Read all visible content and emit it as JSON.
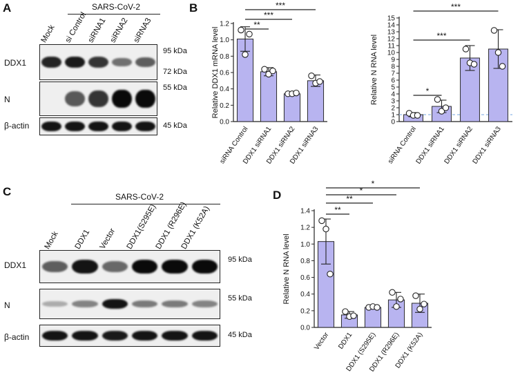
{
  "panel_letters": {
    "a": "A",
    "b": "B",
    "c": "C",
    "d": "D"
  },
  "panelA": {
    "header": "SARS-CoV-2",
    "lanes": [
      "Mock",
      "si Control",
      "siRNA1",
      "siRNA2",
      "siRNA3"
    ],
    "rows": [
      {
        "label": "DDX1",
        "markers": [
          "95 kDa",
          "72 kDa"
        ],
        "bands": [
          0.85,
          0.9,
          0.75,
          0.4,
          0.5
        ]
      },
      {
        "label": "N",
        "markers": [
          "55 kDa"
        ],
        "bands": [
          0.0,
          0.55,
          0.75,
          1.0,
          1.0
        ]
      },
      {
        "label": "β-actin",
        "markers": [
          "45 kDa"
        ],
        "bands": [
          0.95,
          0.95,
          0.95,
          0.95,
          0.95
        ]
      }
    ]
  },
  "panelC": {
    "header": "SARS-CoV-2",
    "lanes": [
      "Mock",
      "DDX1",
      "Vector",
      "DDX1(S295E)",
      "DDX1 (R296E)",
      "DDX1 (K52A)"
    ],
    "rows": [
      {
        "label": "DDX1",
        "markers": [
          "95 kDa"
        ],
        "bands": [
          0.5,
          0.95,
          0.45,
          1.0,
          1.0,
          1.0
        ]
      },
      {
        "label": "N",
        "markers": [
          "55 kDa"
        ],
        "bands": [
          0.05,
          0.3,
          0.95,
          0.35,
          0.35,
          0.3
        ]
      },
      {
        "label": "β-actin",
        "markers": [
          "45 kDa"
        ],
        "bands": [
          0.95,
          0.95,
          0.9,
          0.95,
          0.95,
          0.95
        ]
      }
    ]
  },
  "colors": {
    "bar_fill": "#b8b4f0",
    "bar_stroke": "#2a2a2a",
    "dashed_line": "#8fb8e6"
  },
  "chart_data": [
    {
      "panel": "B-left",
      "type": "bar",
      "ylabel": "Relative DDX1 mRNA level",
      "ylim": [
        0,
        1.2
      ],
      "yticks": [
        "0.0",
        "0.2",
        "0.4",
        "0.6",
        "0.8",
        "1.0",
        "1.2"
      ],
      "categories": [
        "siRNA Control",
        "DDX1 siRNA1",
        "DDX1 siRNA2",
        "DDX1 siRNA3"
      ],
      "values": [
        1.01,
        0.61,
        0.34,
        0.5
      ],
      "errors": [
        0.15,
        0.05,
        0.02,
        0.07
      ],
      "points": [
        [
          1.12,
          0.82,
          1.07
        ],
        [
          0.64,
          0.58,
          0.62
        ],
        [
          0.34,
          0.34,
          0.35
        ],
        [
          0.56,
          0.47,
          0.49
        ]
      ],
      "significance": [
        {
          "from": 0,
          "to": 1,
          "label": "**"
        },
        {
          "from": 0,
          "to": 2,
          "label": "***"
        },
        {
          "from": 0,
          "to": 3,
          "label": "***"
        }
      ]
    },
    {
      "panel": "B-right",
      "type": "bar",
      "ylabel": "Relative N RNA level",
      "ylim": [
        0,
        15
      ],
      "yticks": [
        "0",
        "1",
        "2",
        "3",
        "4",
        "5",
        "6",
        "7",
        "8",
        "9",
        "10",
        "11",
        "12",
        "13",
        "14",
        "15"
      ],
      "categories": [
        "siRNA Control",
        "DDX1 siRNA1",
        "DDX1 siRNA2",
        "DDX1 siRNA3"
      ],
      "values": [
        1.0,
        2.2,
        9.2,
        10.5
      ],
      "errors": [
        0.3,
        0.9,
        1.8,
        2.8
      ],
      "points": [
        [
          1.2,
          0.9,
          0.9
        ],
        [
          3.2,
          1.5,
          2.0
        ],
        [
          10.5,
          8.5,
          8.3
        ],
        [
          13.2,
          10.0,
          8.0
        ]
      ],
      "baseline": 1,
      "significance": [
        {
          "from": 0,
          "to": 1,
          "label": "*"
        },
        {
          "from": 0,
          "to": 2,
          "label": "***"
        },
        {
          "from": 0,
          "to": 3,
          "label": "***"
        }
      ]
    },
    {
      "panel": "D",
      "type": "bar",
      "ylabel": "Relative N RNA level",
      "ylim": [
        0,
        1.4
      ],
      "yticks": [
        "0.0",
        "0.2",
        "0.4",
        "0.6",
        "0.8",
        "1.0",
        "1.2",
        "1.4"
      ],
      "categories": [
        "Vector",
        "DDX1",
        "DDX1 (S295E)",
        "DDX1 (R296E)",
        "DDX1 (K52A)"
      ],
      "values": [
        1.03,
        0.15,
        0.24,
        0.33,
        0.29
      ],
      "errors": [
        0.27,
        0.04,
        0.02,
        0.09,
        0.11
      ],
      "points": [
        [
          1.28,
          1.18,
          0.64
        ],
        [
          0.19,
          0.13,
          0.14
        ],
        [
          0.24,
          0.25,
          0.24
        ],
        [
          0.42,
          0.25,
          0.34
        ],
        [
          0.38,
          0.22,
          0.28
        ]
      ],
      "significance": [
        {
          "from": 0,
          "to": 1,
          "label": "**"
        },
        {
          "from": 0,
          "to": 2,
          "label": "**"
        },
        {
          "from": 0,
          "to": 3,
          "label": "*"
        },
        {
          "from": 0,
          "to": 4,
          "label": "*"
        }
      ]
    }
  ]
}
